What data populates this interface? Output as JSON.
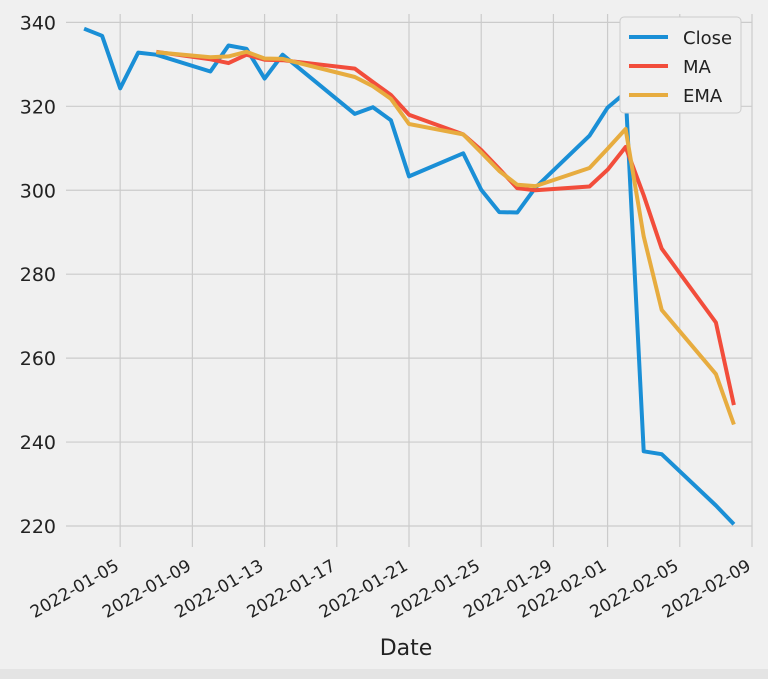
{
  "chart_data": {
    "type": "line",
    "title": "",
    "xlabel": "Date",
    "ylabel": "",
    "x_type": "date",
    "x_range": [
      "2022-01-02",
      "2022-02-09"
    ],
    "ylim": [
      215,
      342
    ],
    "y_ticks": [
      220,
      240,
      260,
      280,
      300,
      320,
      340
    ],
    "x_ticks": [
      "2022-01-05",
      "2022-01-09",
      "2022-01-13",
      "2022-01-17",
      "2022-01-21",
      "2022-01-25",
      "2022-01-29",
      "2022-02-01",
      "2022-02-05",
      "2022-02-09"
    ],
    "grid": true,
    "legend_position": "top-right",
    "series": [
      {
        "name": "Close",
        "color": "#1a8fd6",
        "points": [
          [
            "2022-01-03",
            338.5
          ],
          [
            "2022-01-04",
            336.8
          ],
          [
            "2022-01-05",
            324.3
          ],
          [
            "2022-01-06",
            332.8
          ],
          [
            "2022-01-07",
            332.3
          ],
          [
            "2022-01-10",
            328.3
          ],
          [
            "2022-01-11",
            334.5
          ],
          [
            "2022-01-12",
            333.7
          ],
          [
            "2022-01-13",
            326.6
          ],
          [
            "2022-01-14",
            332.3
          ],
          [
            "2022-01-18",
            318.2
          ],
          [
            "2022-01-19",
            319.8
          ],
          [
            "2022-01-20",
            316.7
          ],
          [
            "2022-01-21",
            303.3
          ],
          [
            "2022-01-24",
            308.8
          ],
          [
            "2022-01-25",
            300.1
          ],
          [
            "2022-01-26",
            294.8
          ],
          [
            "2022-01-27",
            294.7
          ],
          [
            "2022-01-28",
            300.6
          ],
          [
            "2022-01-31",
            313.0
          ],
          [
            "2022-02-01",
            319.7
          ],
          [
            "2022-02-02",
            323.3
          ],
          [
            "2022-02-03",
            237.8
          ],
          [
            "2022-02-04",
            237.1
          ],
          [
            "2022-02-07",
            224.9
          ],
          [
            "2022-02-08",
            220.4
          ]
        ]
      },
      {
        "name": "MA",
        "color": "#f24d3b",
        "points": [
          [
            "2022-01-07",
            333.0
          ],
          [
            "2022-01-10",
            331.2
          ],
          [
            "2022-01-11",
            330.3
          ],
          [
            "2022-01-12",
            332.3
          ],
          [
            "2022-01-13",
            331.1
          ],
          [
            "2022-01-14",
            331.0
          ],
          [
            "2022-01-18",
            329.0
          ],
          [
            "2022-01-19",
            325.8
          ],
          [
            "2022-01-20",
            322.7
          ],
          [
            "2022-01-21",
            318.0
          ],
          [
            "2022-01-24",
            313.3
          ],
          [
            "2022-01-25",
            309.6
          ],
          [
            "2022-01-26",
            305.1
          ],
          [
            "2022-01-27",
            300.5
          ],
          [
            "2022-01-28",
            300.0
          ],
          [
            "2022-01-31",
            300.9
          ],
          [
            "2022-02-01",
            304.9
          ],
          [
            "2022-02-02",
            310.3
          ],
          [
            "2022-02-03",
            298.8
          ],
          [
            "2022-02-04",
            286.1
          ],
          [
            "2022-02-07",
            268.5
          ],
          [
            "2022-02-08",
            248.8
          ]
        ]
      },
      {
        "name": "EMA",
        "color": "#e7ac3f",
        "points": [
          [
            "2022-01-07",
            332.9
          ],
          [
            "2022-01-10",
            331.7
          ],
          [
            "2022-01-11",
            331.9
          ],
          [
            "2022-01-12",
            333.0
          ],
          [
            "2022-01-13",
            331.4
          ],
          [
            "2022-01-14",
            331.3
          ],
          [
            "2022-01-18",
            327.0
          ],
          [
            "2022-01-19",
            324.8
          ],
          [
            "2022-01-20",
            321.8
          ],
          [
            "2022-01-21",
            315.8
          ],
          [
            "2022-01-24",
            313.3
          ],
          [
            "2022-01-25",
            309.0
          ],
          [
            "2022-01-26",
            304.6
          ],
          [
            "2022-01-27",
            301.3
          ],
          [
            "2022-01-28",
            301.0
          ],
          [
            "2022-01-31",
            305.3
          ],
          [
            "2022-02-01",
            309.9
          ],
          [
            "2022-02-02",
            314.6
          ],
          [
            "2022-02-03",
            289.0
          ],
          [
            "2022-02-04",
            271.5
          ],
          [
            "2022-02-07",
            256.2
          ],
          [
            "2022-02-08",
            244.2
          ]
        ]
      }
    ]
  }
}
